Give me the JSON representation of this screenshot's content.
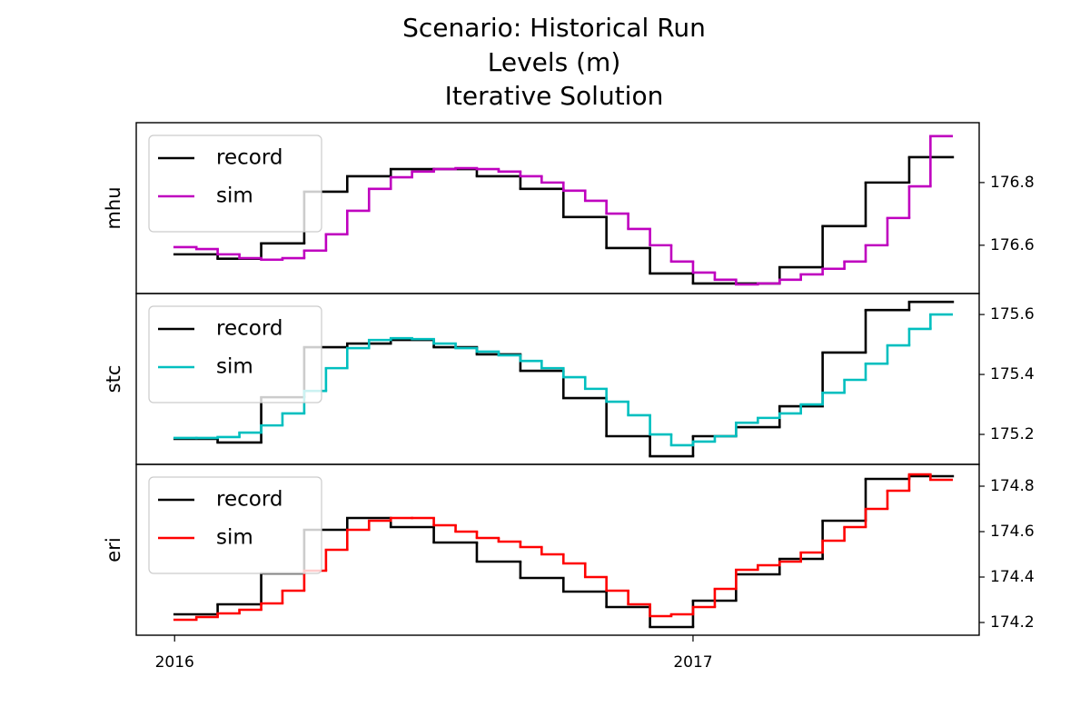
{
  "suptitle": [
    "Scenario: Historical Run",
    "Levels (m)",
    "Iterative Solution"
  ],
  "chart_data": [
    {
      "type": "step",
      "ylabel": "mhu",
      "legend": "upper left",
      "xlim": [
        2015.926,
        2017.552
      ],
      "ylim": [
        176.446,
        176.991
      ],
      "yticks": [
        176.6,
        176.8
      ],
      "series": [
        {
          "name": "record",
          "color": "#000000",
          "x": [
            2016,
            2016.083,
            2016.167,
            2016.25,
            2016.333,
            2016.417,
            2016.5,
            2016.583,
            2016.667,
            2016.75,
            2016.833,
            2016.917,
            2017,
            2017.083,
            2017.167,
            2017.25,
            2017.333,
            2017.417
          ],
          "values": [
            176.571,
            176.557,
            176.606,
            176.771,
            176.82,
            176.843,
            176.843,
            176.82,
            176.78,
            176.69,
            176.591,
            176.51,
            176.478,
            176.478,
            176.53,
            176.661,
            176.8,
            176.881
          ]
        },
        {
          "name": "sim",
          "color": "#bf00bf",
          "x": [
            2016,
            2016.042,
            2016.083,
            2016.125,
            2016.167,
            2016.208,
            2016.25,
            2016.292,
            2016.333,
            2016.375,
            2016.417,
            2016.458,
            2016.5,
            2016.542,
            2016.583,
            2016.625,
            2016.667,
            2016.708,
            2016.75,
            2016.792,
            2016.833,
            2016.875,
            2016.917,
            2016.958,
            2017,
            2017.042,
            2017.083,
            2017.125,
            2017.167,
            2017.208,
            2017.25,
            2017.292,
            2017.333,
            2017.375,
            2017.417,
            2017.458
          ],
          "values": [
            176.594,
            176.588,
            176.571,
            176.559,
            176.554,
            176.559,
            176.583,
            176.635,
            176.71,
            176.78,
            176.817,
            176.835,
            176.843,
            176.846,
            176.843,
            176.835,
            176.82,
            176.8,
            176.774,
            176.742,
            176.701,
            176.652,
            176.6,
            176.548,
            176.513,
            176.49,
            176.475,
            176.478,
            176.49,
            176.507,
            176.525,
            176.548,
            176.6,
            176.687,
            176.788,
            176.948
          ]
        }
      ]
    },
    {
      "type": "step",
      "ylabel": "stc",
      "legend": "upper left",
      "xlim": [
        2015.926,
        2017.552
      ],
      "ylim": [
        175.1,
        175.67
      ],
      "yticks": [
        175.2,
        175.4,
        175.6
      ],
      "series": [
        {
          "name": "record",
          "color": "#000000",
          "x": [
            2016,
            2016.083,
            2016.167,
            2016.25,
            2016.333,
            2016.417,
            2016.5,
            2016.583,
            2016.667,
            2016.75,
            2016.833,
            2016.917,
            2017,
            2017.083,
            2017.167,
            2017.25,
            2017.333,
            2017.417
          ],
          "values": [
            175.185,
            175.173,
            175.324,
            175.491,
            175.503,
            175.515,
            175.491,
            175.467,
            175.412,
            175.321,
            175.194,
            175.127,
            175.194,
            175.224,
            175.294,
            175.473,
            175.615,
            175.642
          ]
        },
        {
          "name": "sim",
          "color": "#00bfbf",
          "x": [
            2016,
            2016.042,
            2016.083,
            2016.125,
            2016.167,
            2016.208,
            2016.25,
            2016.292,
            2016.333,
            2016.375,
            2016.417,
            2016.458,
            2016.5,
            2016.542,
            2016.583,
            2016.625,
            2016.667,
            2016.708,
            2016.75,
            2016.792,
            2016.833,
            2016.875,
            2016.917,
            2016.958,
            2017,
            2017.042,
            2017.083,
            2017.125,
            2017.167,
            2017.208,
            2017.25,
            2017.292,
            2017.333,
            2017.375,
            2017.417,
            2017.458
          ],
          "values": [
            175.188,
            175.188,
            175.191,
            175.206,
            175.23,
            175.27,
            175.345,
            175.421,
            175.488,
            175.515,
            175.521,
            175.518,
            175.503,
            175.488,
            175.476,
            175.464,
            175.445,
            175.421,
            175.391,
            175.352,
            175.309,
            175.264,
            175.2,
            175.164,
            175.176,
            175.194,
            175.239,
            175.255,
            175.27,
            175.3,
            175.339,
            175.382,
            175.436,
            175.497,
            175.552,
            175.6
          ]
        }
      ]
    },
    {
      "type": "step",
      "ylabel": "eri",
      "legend": "upper left",
      "xlim": [
        2015.926,
        2017.552
      ],
      "ylim": [
        174.144,
        174.896
      ],
      "yticks": [
        174.2,
        174.4,
        174.6,
        174.8
      ],
      "xticks": [
        2016,
        2017
      ],
      "series": [
        {
          "name": "record",
          "color": "#000000",
          "x": [
            2016,
            2016.083,
            2016.167,
            2016.25,
            2016.333,
            2016.417,
            2016.5,
            2016.583,
            2016.667,
            2016.75,
            2016.833,
            2016.917,
            2017,
            2017.083,
            2017.167,
            2017.25,
            2017.333,
            2017.417
          ],
          "values": [
            174.236,
            174.28,
            174.416,
            174.608,
            174.66,
            174.62,
            174.552,
            174.468,
            174.396,
            174.336,
            174.268,
            174.18,
            174.296,
            174.412,
            174.48,
            174.648,
            174.832,
            174.844
          ]
        },
        {
          "name": "sim",
          "color": "#ff0000",
          "x": [
            2016,
            2016.042,
            2016.083,
            2016.125,
            2016.167,
            2016.208,
            2016.25,
            2016.292,
            2016.333,
            2016.375,
            2016.417,
            2016.458,
            2016.5,
            2016.542,
            2016.583,
            2016.625,
            2016.667,
            2016.708,
            2016.75,
            2016.792,
            2016.833,
            2016.875,
            2016.917,
            2016.958,
            2017,
            2017.042,
            2017.083,
            2017.125,
            2017.167,
            2017.208,
            2017.25,
            2017.292,
            2017.333,
            2017.375,
            2017.417,
            2017.458
          ],
          "values": [
            174.212,
            174.224,
            174.24,
            174.256,
            174.284,
            174.34,
            174.428,
            174.52,
            174.608,
            174.648,
            174.66,
            174.66,
            174.628,
            174.6,
            174.572,
            174.556,
            174.532,
            174.5,
            174.46,
            174.4,
            174.34,
            174.28,
            174.228,
            174.236,
            174.268,
            174.348,
            174.432,
            174.452,
            174.468,
            174.508,
            174.56,
            174.62,
            174.7,
            174.78,
            174.852,
            174.828
          ]
        }
      ]
    }
  ]
}
